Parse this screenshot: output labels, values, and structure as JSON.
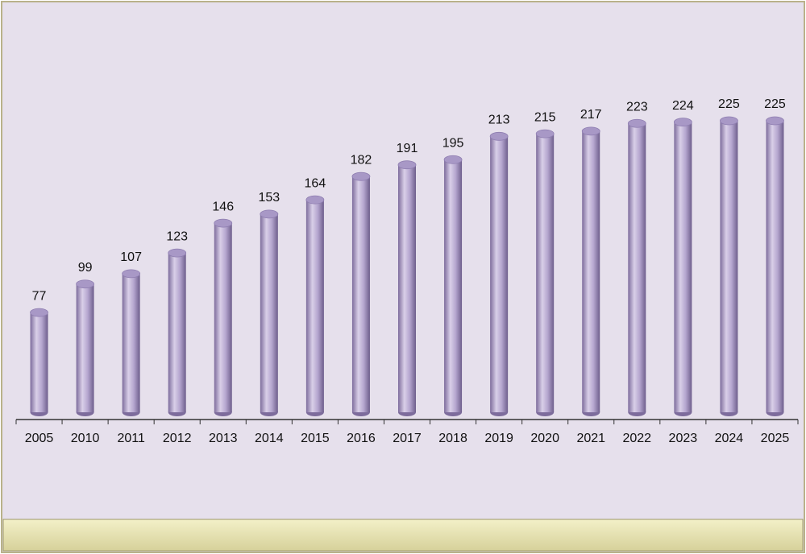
{
  "chart_data": {
    "type": "bar",
    "categories": [
      "2005",
      "2010",
      "2011",
      "2012",
      "2013",
      "2014",
      "2015",
      "2016",
      "2017",
      "2018",
      "2019",
      "2020",
      "2021",
      "2022",
      "2023",
      "2024",
      "2025"
    ],
    "values": [
      77,
      99,
      107,
      123,
      146,
      153,
      164,
      182,
      191,
      195,
      213,
      215,
      217,
      223,
      224,
      225,
      225
    ],
    "color": "#a898c6"
  }
}
